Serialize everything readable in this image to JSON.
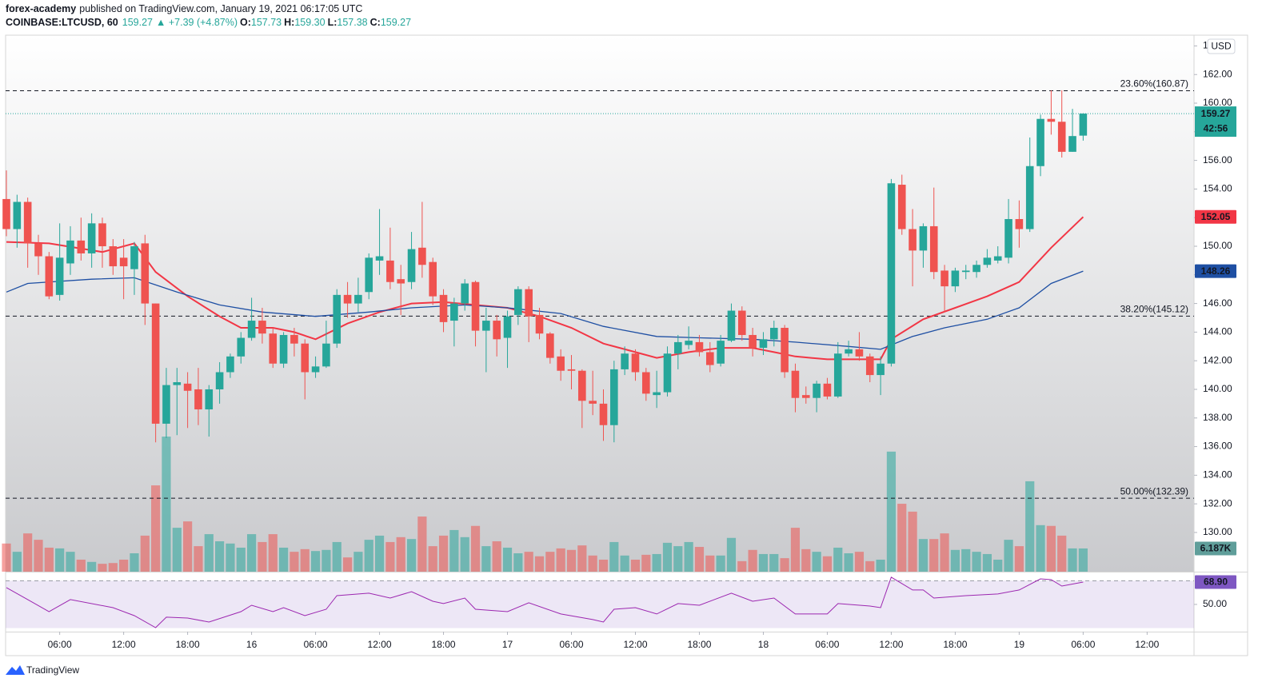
{
  "header": {
    "author": "forex-academy",
    "published": "published on TradingView.com, January 19, 2021 06:17:05 UTC",
    "symbol": "COINBASE:LTCUSD, 60",
    "price": "159.27",
    "change": "▲ +7.39 (+4.87%)",
    "ohlc": [
      {
        "key": "O:",
        "value": "157.73"
      },
      {
        "key": "H:",
        "value": "159.30"
      },
      {
        "key": "L:",
        "value": "157.38"
      },
      {
        "key": "C:",
        "value": "159.27"
      }
    ]
  },
  "chart_data": {
    "type": "candlestick",
    "up_color": "#26a69a",
    "down_color": "#ef5350",
    "currency": "USD",
    "countdown": "42:56",
    "xlim": [
      -0.075,
      111.4
    ],
    "xticks": [
      {
        "value": 5,
        "label": "06:00"
      },
      {
        "value": 11,
        "label": "12:00"
      },
      {
        "value": 17,
        "label": "18:00"
      },
      {
        "value": 23,
        "label": "16"
      },
      {
        "value": 29,
        "label": "06:00"
      },
      {
        "value": 35,
        "label": "12:00"
      },
      {
        "value": 41,
        "label": "18:00"
      },
      {
        "value": 47,
        "label": "17"
      },
      {
        "value": 53,
        "label": "06:00"
      },
      {
        "value": 59,
        "label": "12:00"
      },
      {
        "value": 65,
        "label": "18:00"
      },
      {
        "value": 71,
        "label": "18"
      },
      {
        "value": 77,
        "label": "06:00"
      },
      {
        "value": 83,
        "label": "12:00"
      },
      {
        "value": 89,
        "label": "18:00"
      },
      {
        "value": 95,
        "label": "19"
      },
      {
        "value": 101,
        "label": "06:00"
      },
      {
        "value": 107,
        "label": "12:00"
      }
    ],
    "ylim": [
      127.26,
      164.75
    ],
    "yticks": [
      {
        "value": 130,
        "label": "130.00"
      },
      {
        "value": 132,
        "label": "132.00"
      },
      {
        "value": 134,
        "label": "134.00"
      },
      {
        "value": 136,
        "label": "136.00"
      },
      {
        "value": 138,
        "label": "138.00"
      },
      {
        "value": 140,
        "label": "140.00"
      },
      {
        "value": 142,
        "label": "142.00"
      },
      {
        "value": 144,
        "label": "144.00"
      },
      {
        "value": 146,
        "label": "146.00"
      },
      {
        "value": 148,
        "label": "148.00"
      },
      {
        "value": 150,
        "label": "150.00"
      },
      {
        "value": 152,
        "label": "152.00"
      },
      {
        "value": 154,
        "label": "154.00"
      },
      {
        "value": 156,
        "label": "156.00"
      },
      {
        "value": 158,
        "label": "158.00"
      },
      {
        "value": 160,
        "label": "160.00"
      },
      {
        "value": 162,
        "label": "162.00"
      },
      {
        "value": 164,
        "label": "164.00"
      }
    ],
    "open": [
      153.3,
      151.2,
      153.1,
      150.2,
      149.3,
      146.6,
      148.8,
      150.4,
      149.5,
      151.6,
      150.0,
      149.2,
      148.4,
      150.2,
      146.0,
      137.6,
      140.3,
      140.4,
      140.0,
      138.6,
      140.0,
      141.2,
      142.3,
      143.6,
      144.8,
      143.9,
      141.8,
      143.8,
      143.2,
      141.2,
      141.6,
      143.2,
      146.6,
      146.0,
      146.8,
      149.0,
      149.0,
      147.7,
      147.5,
      149.9,
      148.9,
      146.6,
      144.8,
      146.0,
      147.5,
      144.1,
      144.8,
      143.6,
      145.2,
      147.0,
      145.2,
      143.9,
      142.3,
      141.4,
      141.3,
      139.2,
      139.0,
      137.5,
      141.4,
      142.5,
      141.2,
      139.6,
      139.8,
      142.5,
      143.1,
      143.3,
      142.6,
      141.8,
      143.4,
      145.5,
      143.8,
      142.9,
      143.5,
      144.3,
      141.3,
      139.6,
      139.4,
      140.4,
      139.5,
      142.5,
      142.8,
      142.3,
      141.0,
      141.8,
      154.3,
      151.2,
      149.7,
      151.4,
      148.3,
      147.2,
      148.2,
      148.2,
      148.7,
      149.0,
      149.2,
      151.9,
      151.2,
      155.6,
      158.9,
      158.7,
      156.6,
      157.73
    ],
    "high": [
      155.3,
      153.6,
      153.4,
      150.8,
      149.6,
      151.6,
      151.4,
      152.0,
      152.3,
      152.0,
      150.5,
      150.5,
      150.3,
      150.8,
      146.0,
      141.5,
      141.5,
      141.2,
      141.5,
      140.3,
      141.9,
      142.5,
      144.0,
      146.4,
      145.7,
      144.3,
      144.0,
      144.3,
      143.5,
      142.3,
      144.8,
      147.0,
      147.5,
      147.8,
      149.5,
      152.6,
      151.3,
      148.7,
      151.0,
      153.1,
      149.2,
      147.0,
      146.4,
      147.7,
      147.6,
      145.7,
      145.2,
      145.5,
      147.2,
      147.2,
      145.7,
      144.0,
      142.8,
      142.4,
      141.4,
      141.3,
      140.0,
      142.0,
      143.0,
      142.8,
      141.5,
      141.3,
      143.0,
      143.8,
      144.4,
      143.8,
      143.3,
      143.8,
      146.0,
      145.8,
      144.3,
      144.0,
      144.8,
      144.5,
      141.8,
      140.2,
      140.6,
      140.8,
      143.3,
      143.4,
      144.0,
      142.5,
      142.3,
      154.7,
      155.0,
      152.6,
      151.6,
      154.1,
      148.7,
      148.5,
      148.7,
      149.0,
      149.8,
      150.0,
      153.3,
      153.2,
      157.6,
      159.2,
      160.9,
      160.9,
      159.6,
      159.3
    ],
    "low": [
      150.7,
      149.9,
      148.5,
      148.0,
      146.3,
      146.2,
      148.0,
      149.0,
      148.5,
      148.5,
      148.0,
      146.3,
      146.6,
      144.5,
      136.3,
      136.6,
      136.8,
      137.3,
      137.5,
      136.7,
      139.0,
      140.8,
      141.8,
      143.4,
      143.2,
      141.5,
      141.5,
      142.3,
      139.3,
      140.8,
      141.5,
      142.9,
      145.0,
      145.4,
      146.3,
      148.0,
      147.0,
      145.2,
      147.0,
      147.8,
      145.9,
      144.0,
      143.0,
      145.5,
      143.0,
      141.2,
      142.3,
      141.5,
      144.5,
      143.3,
      143.5,
      141.8,
      140.6,
      140.0,
      137.3,
      138.2,
      136.4,
      136.3,
      141.0,
      140.6,
      139.2,
      138.7,
      139.5,
      141.4,
      142.8,
      142.3,
      141.2,
      141.6,
      143.3,
      143.4,
      142.3,
      142.4,
      143.0,
      140.8,
      138.4,
      139.0,
      138.4,
      139.3,
      139.4,
      142.3,
      142.0,
      140.5,
      139.6,
      141.6,
      150.8,
      147.2,
      148.5,
      147.7,
      145.4,
      146.8,
      147.7,
      147.8,
      148.5,
      148.8,
      148.8,
      149.9,
      151.0,
      154.9,
      157.8,
      156.2,
      156.6,
      157.38
    ],
    "close": [
      151.2,
      153.1,
      150.2,
      149.3,
      146.5,
      149.2,
      150.4,
      149.5,
      151.6,
      150.0,
      148.6,
      148.6,
      150.0,
      146.0,
      137.6,
      140.3,
      140.5,
      139.9,
      138.6,
      140.0,
      141.2,
      142.3,
      143.6,
      144.8,
      143.9,
      141.8,
      143.8,
      143.2,
      141.2,
      141.6,
      143.2,
      146.6,
      146.0,
      146.6,
      149.2,
      149.3,
      147.5,
      147.4,
      149.8,
      148.7,
      146.5,
      144.7,
      146.0,
      147.4,
      144.1,
      144.8,
      143.5,
      145.1,
      147.0,
      145.1,
      143.9,
      142.2,
      141.3,
      141.3,
      139.2,
      139.0,
      137.5,
      141.4,
      142.5,
      141.2,
      139.7,
      139.8,
      142.5,
      143.3,
      143.4,
      142.6,
      141.7,
      143.4,
      145.5,
      143.8,
      142.9,
      143.5,
      144.3,
      141.2,
      139.4,
      139.4,
      140.4,
      139.5,
      142.5,
      142.8,
      142.3,
      141.0,
      141.8,
      154.4,
      151.2,
      149.7,
      151.4,
      148.2,
      147.2,
      148.3,
      148.3,
      148.7,
      149.2,
      149.3,
      151.9,
      151.2,
      155.6,
      158.9,
      158.7,
      156.6,
      157.7,
      159.27
    ],
    "levels": [
      {
        "value": 160.87,
        "label": "23.60%(160.87)"
      },
      {
        "value": 145.12,
        "label": "38.20%(145.12)"
      },
      {
        "value": 132.39,
        "label": "50.00%(132.39)"
      }
    ],
    "ema": [
      {
        "color": "#f23645",
        "x": [
          0,
          4,
          9,
          12,
          14,
          17,
          20,
          22,
          25,
          27,
          29,
          32,
          35,
          38,
          41,
          44,
          47,
          50,
          53,
          56,
          59,
          61,
          64,
          67,
          70,
          72,
          74,
          77,
          82,
          83,
          86,
          89,
          92,
          95,
          98,
          101
        ],
        "values": [
          150.3,
          150.2,
          149.6,
          150.2,
          148.2,
          146.5,
          145.1,
          144.3,
          144.3,
          144.0,
          143.5,
          144.6,
          145.4,
          146.0,
          146.1,
          145.9,
          145.7,
          145.1,
          144.3,
          143.2,
          142.6,
          142.2,
          142.6,
          142.9,
          142.9,
          142.6,
          142.3,
          142.1,
          142.1,
          143.5,
          144.9,
          145.7,
          146.5,
          147.5,
          149.9,
          152.05
        ]
      },
      {
        "color": "#1e4fa3",
        "x": [
          0,
          2,
          8,
          12,
          16,
          20,
          24,
          29,
          34,
          38,
          43,
          47,
          52,
          56,
          61,
          65,
          70,
          74,
          79,
          82,
          85,
          88,
          92,
          95,
          98,
          101
        ],
        "values": [
          146.8,
          147.4,
          147.7,
          147.8,
          146.8,
          145.9,
          145.4,
          145.1,
          145.4,
          145.7,
          145.9,
          145.7,
          145.3,
          144.4,
          143.7,
          143.6,
          143.5,
          143.3,
          143.0,
          142.8,
          143.7,
          144.3,
          144.9,
          145.7,
          147.4,
          148.26
        ]
      }
    ],
    "volume": {
      "ylim": [
        0,
        143
      ],
      "last_label": "6.187K",
      "values": [
        7.5,
        5.3,
        10.2,
        8.5,
        6.4,
        6.2,
        5.3,
        3.2,
        2.6,
        2.1,
        2.3,
        3.2,
        4.9,
        9.6,
        23,
        36,
        11.7,
        13.4,
        6.8,
        10,
        8.1,
        7.5,
        6.4,
        10,
        7.9,
        10,
        6.4,
        5.3,
        6.0,
        5.5,
        5.8,
        7.9,
        3.8,
        5.3,
        8.5,
        9.6,
        7.9,
        9.2,
        8.7,
        14.7,
        6.8,
        9.6,
        11.1,
        9.2,
        12.2,
        6.8,
        8.1,
        6.4,
        4.9,
        5.3,
        4.1,
        5.3,
        6.2,
        5.8,
        7.0,
        4.3,
        3.2,
        7.9,
        4.3,
        3.2,
        4.5,
        4.7,
        7.7,
        6.8,
        7.9,
        6.6,
        4.3,
        4.3,
        9.0,
        2.8,
        5.8,
        4.7,
        4.7,
        3.6,
        11.7,
        6.0,
        5.3,
        4.1,
        6.4,
        4.9,
        5.3,
        2.8,
        3.2,
        32,
        18.1,
        16,
        8.7,
        8.7,
        10.2,
        5.8,
        6.0,
        5.3,
        4.7,
        3.2,
        8.5,
        6.8,
        24.1,
        12.4,
        12.2,
        9.6,
        6.2,
        6.187
      ]
    },
    "rsi": {
      "color": "#9c27b0",
      "ylim": [
        27,
        77
      ],
      "yticks": [
        {
          "value": 50,
          "label": "50.00"
        }
      ],
      "band": [
        30,
        70
      ],
      "last_label": "68.90",
      "x": [
        0,
        2,
        4,
        6,
        10,
        12,
        14,
        15,
        17,
        19,
        22,
        23,
        25,
        26,
        28,
        30,
        31,
        34,
        36,
        38,
        40,
        41,
        43,
        44,
        47,
        49,
        52,
        55,
        56,
        57,
        59,
        61,
        63,
        65,
        68,
        70,
        72,
        74,
        77,
        78,
        81,
        82,
        83,
        85,
        86,
        87,
        90,
        93,
        95,
        97,
        98,
        99,
        101
      ],
      "values": [
        64.2,
        54.1,
        43.9,
        54.1,
        47.3,
        40.5,
        30.4,
        39.2,
        38.5,
        35.1,
        43.9,
        49.3,
        43.9,
        47.3,
        40.5,
        45.9,
        57.4,
        59.5,
        55.4,
        60.8,
        52.7,
        50.7,
        55.4,
        45.9,
        43.9,
        51.4,
        41.9,
        37.2,
        35.1,
        45.9,
        47.3,
        41.9,
        50.7,
        49.3,
        59.5,
        52.7,
        55.4,
        41.9,
        41.9,
        50.7,
        48.6,
        47.3,
        73.0,
        62.2,
        62.2,
        55.4,
        57.4,
        58.8,
        62.2,
        71.6,
        70.9,
        65.5,
        68.9
      ]
    }
  },
  "footer": {
    "brand": "TradingView"
  }
}
